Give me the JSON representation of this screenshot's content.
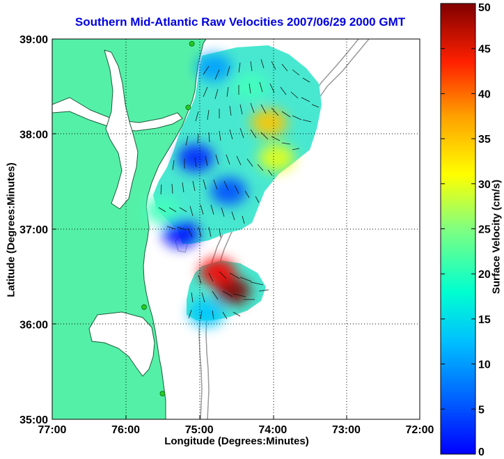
{
  "title": "Southern Mid-Atlantic Raw Velocities 2007/06/29 2000 GMT",
  "axes": {
    "xlabel": "Longitude (Degrees:Minutes)",
    "ylabel": "Latitude (Degrees:Minutes)",
    "x_ticks": [
      "77:00",
      "76:00",
      "75:00",
      "74:00",
      "73:00",
      "72:00"
    ],
    "y_ticks": [
      "39:00",
      "38:00",
      "37:00",
      "36:00",
      "35:00"
    ],
    "lon_range": [
      -77,
      -72
    ],
    "lat_range": [
      35,
      39
    ],
    "grid": "dotted"
  },
  "colorbar": {
    "label": "Surface Velocity (cm/s)",
    "ticks": [
      "50",
      "45",
      "40",
      "35",
      "30",
      "25",
      "20",
      "15",
      "10",
      "5",
      "0"
    ],
    "range": [
      0,
      50
    ],
    "colormap": "jet"
  },
  "colors": {
    "title": "#0000e0",
    "land": "#55f0a8",
    "bathymetry": "#999999",
    "station": "#22cc22"
  },
  "chart_data": {
    "type": "heatmap",
    "units": "cm/s",
    "stations": [
      {
        "lon": -75.1,
        "lat": 38.95
      },
      {
        "lon": -75.15,
        "lat": 38.28
      },
      {
        "lon": -75.75,
        "lat": 36.18
      },
      {
        "lon": -75.5,
        "lat": 35.27
      }
    ],
    "speed_zones": [
      {
        "lon": -74.05,
        "lat": 38.12,
        "speed": 34
      },
      {
        "lon": -74.3,
        "lat": 38.5,
        "speed": 22
      },
      {
        "lon": -73.95,
        "lat": 37.75,
        "speed": 30
      },
      {
        "lon": -74.55,
        "lat": 36.35,
        "speed": 50
      },
      {
        "lon": -74.75,
        "lat": 36.55,
        "speed": 44
      },
      {
        "lon": -74.9,
        "lat": 36.12,
        "speed": 16
      },
      {
        "lon": -75.05,
        "lat": 37.75,
        "speed": 8
      },
      {
        "lon": -74.6,
        "lat": 37.4,
        "speed": 10
      },
      {
        "lon": -75.5,
        "lat": 37.2,
        "speed": 22
      },
      {
        "lon": -75.25,
        "lat": 36.95,
        "speed": 7
      },
      {
        "lon": -74.8,
        "lat": 38.7,
        "speed": 14
      }
    ]
  }
}
